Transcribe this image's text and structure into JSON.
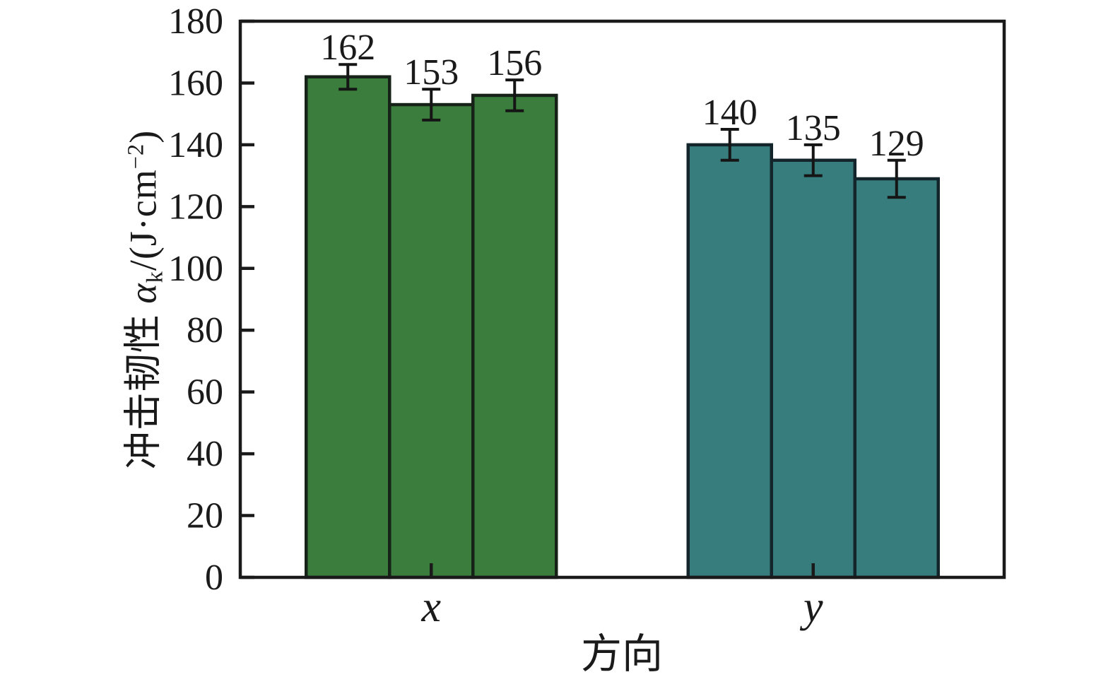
{
  "chart_data": {
    "type": "bar",
    "title": "",
    "xlabel": "方向",
    "ylabel": "冲击韧性 αₖ/(J·cm⁻²)",
    "ylabel_parts": {
      "prefix": "冲击韧性 ",
      "alpha": "α",
      "sub": "k",
      "mid": "/(J·cm",
      "sup": "−2",
      "suffix": ")"
    },
    "categories": [
      "x",
      "y"
    ],
    "bars_per_category": 3,
    "groups": [
      {
        "label": "x",
        "bar_color": "#3a7d3c",
        "edge_color": "#162118",
        "values": [
          162,
          153,
          156
        ],
        "errors": [
          4,
          5,
          5
        ]
      },
      {
        "label": "y",
        "bar_color": "#377d7e",
        "edge_color": "#13242a",
        "values": [
          140,
          135,
          129
        ],
        "errors": [
          5,
          5,
          6
        ]
      }
    ],
    "ylim": [
      0,
      180
    ],
    "yticks": [
      0,
      20,
      40,
      60,
      80,
      100,
      120,
      140,
      160,
      180
    ],
    "grid": false,
    "legend": "none",
    "bar_value_labels": true,
    "axis_color": "#1a1a1a",
    "error_bar_color": "#151515",
    "text_color": "#1a1a1a",
    "background_color": "#ffffff"
  }
}
